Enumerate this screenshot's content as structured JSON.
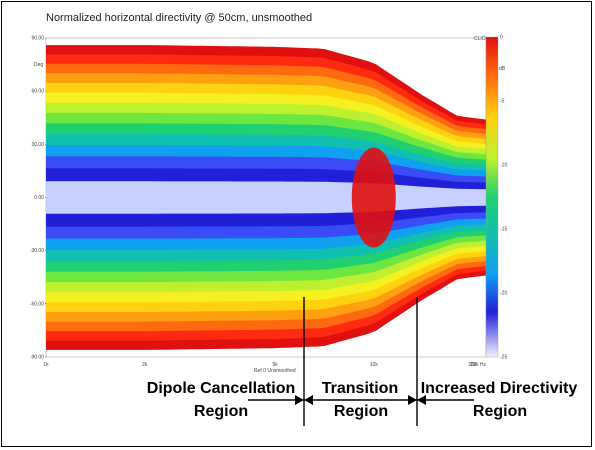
{
  "chart_data": {
    "type": "heatmap",
    "title": "Normalized horizontal directivity @ 50cm, unsmoothed",
    "x_scale": "log",
    "x_ticks": [
      "1k",
      "2k",
      "5k",
      "10k",
      "20k",
      "22k Hz"
    ],
    "x_axis_caption": "Ref 0 Unsmoothed",
    "y_ticks": [
      "90.00",
      "60.00",
      "30.00",
      "0.00",
      "-30.00",
      "-60.00",
      "-90.00"
    ],
    "y_unit": "Deg",
    "ylim": [
      -90,
      90
    ],
    "colorbar_unit": "dB",
    "colorbar_ticks": [
      "0",
      "-5",
      "-10",
      "-15",
      "-20",
      "-25"
    ],
    "colorbar_header": "CLIO",
    "colorbar_range": [
      -25,
      0
    ],
    "contour": [
      {
        "freq": 1000,
        "half_width_deg": 86
      },
      {
        "freq": 2000,
        "half_width_deg": 86
      },
      {
        "freq": 5000,
        "half_width_deg": 85
      },
      {
        "freq": 7000,
        "half_width_deg": 84
      },
      {
        "freq": 10000,
        "half_width_deg": 76
      },
      {
        "freq": 14000,
        "half_width_deg": 58
      },
      {
        "freq": 18000,
        "half_width_deg": 46
      },
      {
        "freq": 22000,
        "half_width_deg": 44
      }
    ],
    "regions": [
      {
        "line1": "Dipole Cancellation",
        "line2": "Region"
      },
      {
        "line1": "Transition",
        "line2": "Region"
      },
      {
        "line1": "Increased Directivity",
        "line2": "Region"
      }
    ],
    "colors": [
      "#e01010",
      "#ff2a10",
      "#ff6a10",
      "#ffa010",
      "#ffd210",
      "#f5f020",
      "#bff030",
      "#6ee640",
      "#20d070",
      "#10c0b0",
      "#10a0f0",
      "#3a4cf5",
      "#2020d8",
      "#c8d0ff"
    ]
  }
}
